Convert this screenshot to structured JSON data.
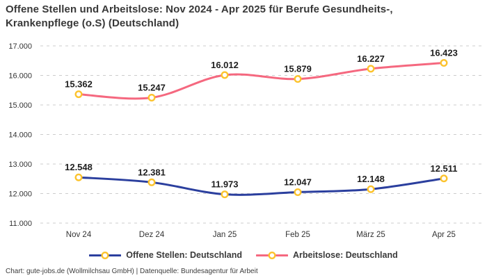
{
  "title": {
    "line1": "Offene Stellen und Arbeitslose: Nov 2024 - Apr 2025 für Berufe Gesundheits-,",
    "line2": "Krankenpflege (o.S) (Deutschland)"
  },
  "footer": {
    "text": "Chart: gute-jobs.de (Wollmilchsau GmbH) | Datenquelle: Bundesagentur für Arbeit"
  },
  "colors": {
    "background": "#ffffff",
    "title_text": "#383838",
    "grid": "#cccccc",
    "axis_text": "#333333",
    "value_label_text": "#1e1e1e",
    "marker_fill": "#ffffff",
    "marker_stroke": "#fcc32d"
  },
  "chart_data": {
    "type": "line",
    "categories": [
      "Nov 24",
      "Dez 24",
      "Jan 25",
      "Feb 25",
      "März 25",
      "Apr 25"
    ],
    "series": [
      {
        "name": "Offene Stellen: Deutschland",
        "color": "#2b3f9e",
        "values": [
          12548,
          12381,
          11973,
          12047,
          12148,
          12511
        ],
        "value_labels": [
          "12.548",
          "12.381",
          "11.973",
          "12.047",
          "12.148",
          "12.511"
        ]
      },
      {
        "name": "Arbeitslose: Deutschland",
        "color": "#f5687f",
        "values": [
          15362,
          15247,
          16012,
          15879,
          16227,
          16423
        ],
        "value_labels": [
          "15.362",
          "15.247",
          "16.012",
          "15.879",
          "16.227",
          "16.423"
        ]
      }
    ],
    "y_ticks": [
      11000,
      12000,
      13000,
      14000,
      15000,
      16000,
      17000
    ],
    "y_tick_labels": [
      "11.000",
      "12.000",
      "13.000",
      "14.000",
      "15.000",
      "16.000",
      "17.000"
    ],
    "ylim": [
      11000,
      17000
    ],
    "grid": "horizontal-dashed",
    "legend_position": "bottom",
    "marker_style": "open-circle-yellow",
    "line_style": "smooth"
  }
}
